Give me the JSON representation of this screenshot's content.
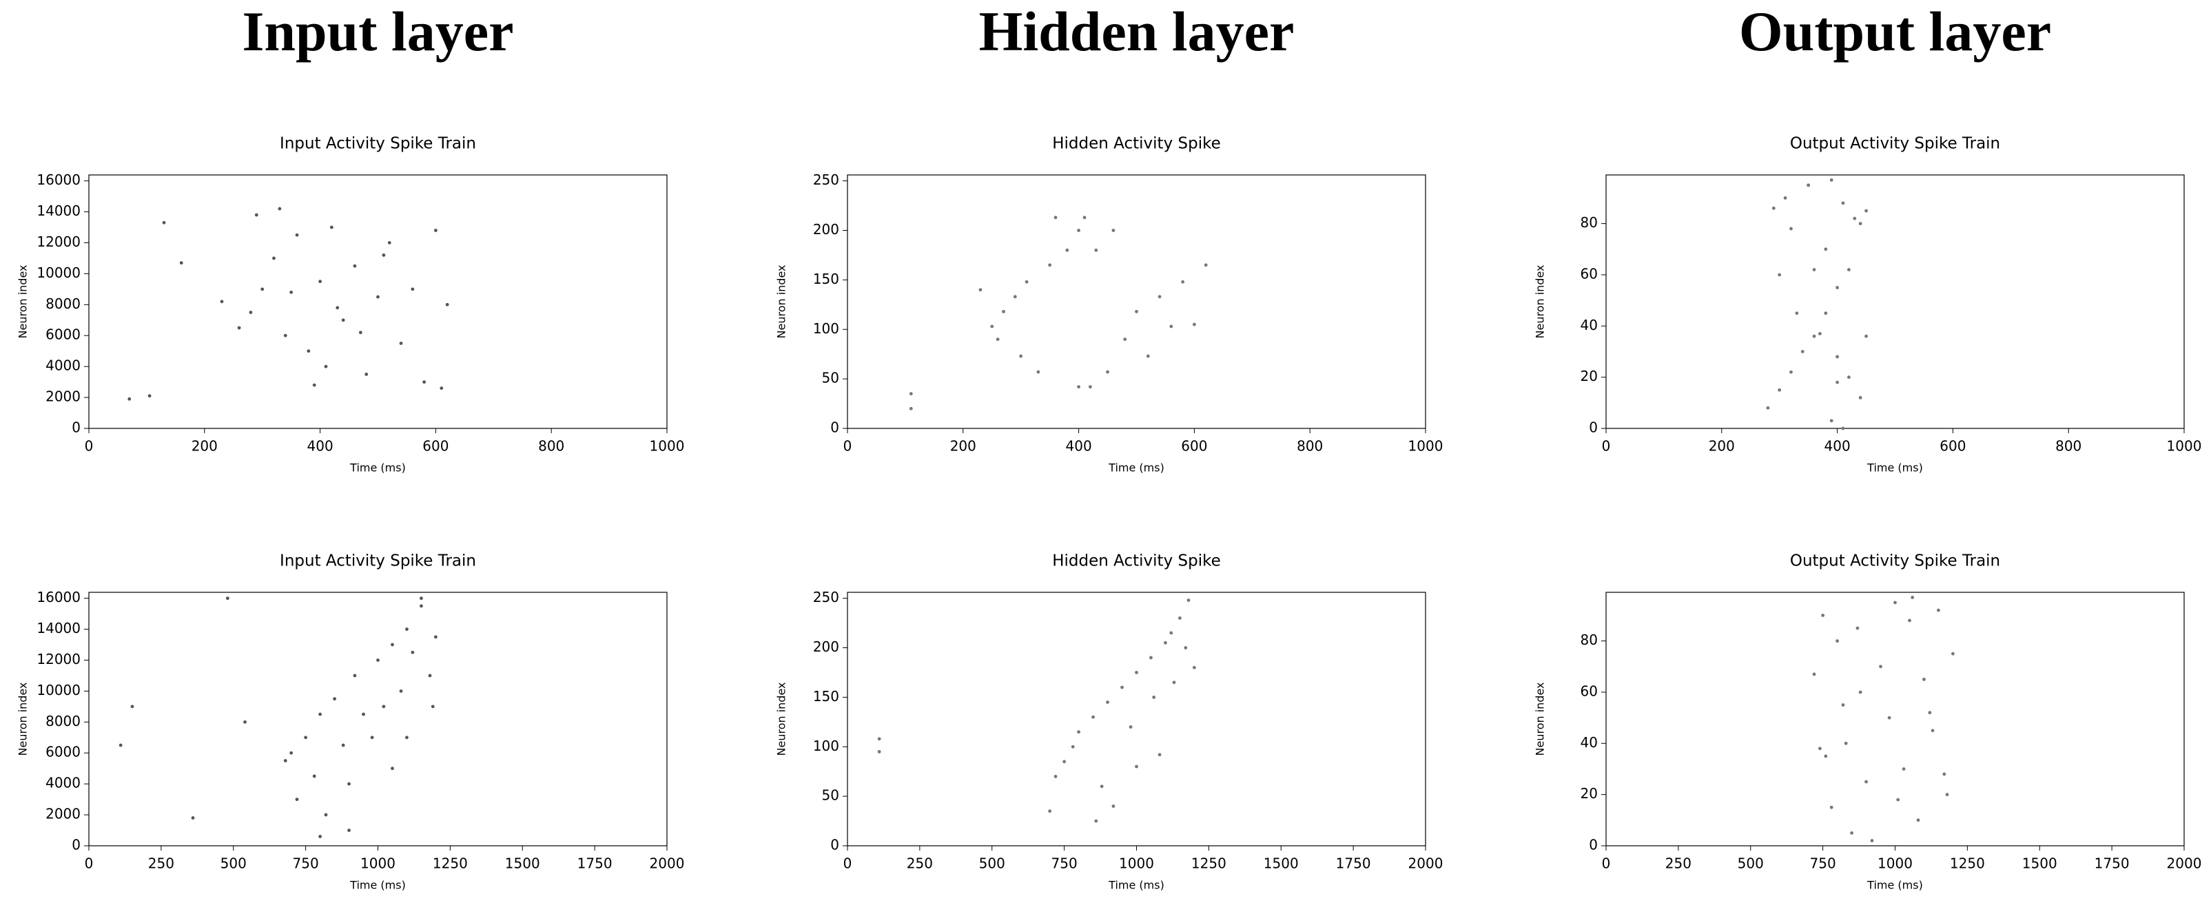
{
  "headers": [
    "Input layer",
    "Hidden layer",
    "Output layer"
  ],
  "chart_data": [
    {
      "type": "scatter",
      "title": "Input Activity Spike Train",
      "x_label": "Time (ms)",
      "y_label": "Neuron index",
      "color": "#555555",
      "xlim": [
        0,
        1000
      ],
      "ylim": [
        0,
        16384
      ],
      "xticks": [
        0,
        200,
        400,
        600,
        800,
        1000
      ],
      "yticks": [
        0,
        2000,
        4000,
        6000,
        8000,
        10000,
        12000,
        14000,
        16000
      ],
      "x": [
        70,
        105,
        130,
        160,
        230,
        260,
        280,
        300,
        320,
        340,
        360,
        380,
        400,
        410,
        420,
        440,
        460,
        480,
        500,
        520,
        540,
        560,
        580,
        600,
        610,
        620,
        290,
        350,
        430,
        470,
        510,
        390,
        330
      ],
      "y": [
        1900,
        2100,
        13300,
        10700,
        8200,
        6500,
        7500,
        9000,
        11000,
        6000,
        12500,
        5000,
        9500,
        4000,
        13000,
        7000,
        10500,
        3500,
        8500,
        12000,
        5500,
        9000,
        3000,
        12800,
        2600,
        8000,
        13800,
        8800,
        7800,
        6200,
        11200,
        2800,
        14200
      ]
    },
    {
      "type": "scatter",
      "title": "Hidden Activity Spike",
      "x_label": "Time (ms)",
      "y_label": "Neuron index",
      "color": "#777777",
      "xlim": [
        0,
        1000
      ],
      "ylim": [
        0,
        256
      ],
      "xticks": [
        0,
        200,
        400,
        600,
        800,
        1000
      ],
      "yticks": [
        0,
        50,
        100,
        150,
        200,
        250
      ],
      "x": [
        110,
        110,
        400,
        420,
        330,
        450,
        300,
        520,
        260,
        480,
        250,
        560,
        270,
        500,
        290,
        540,
        310,
        580,
        350,
        620,
        380,
        430,
        400,
        460,
        360,
        410,
        230,
        600
      ],
      "y": [
        20,
        35,
        42,
        42,
        57,
        57,
        73,
        73,
        90,
        90,
        103,
        103,
        118,
        118,
        133,
        133,
        148,
        148,
        165,
        165,
        180,
        180,
        200,
        200,
        213,
        213,
        140,
        105
      ]
    },
    {
      "type": "scatter",
      "title": "Output Activity Spike Train",
      "x_label": "Time (ms)",
      "y_label": "Neuron index",
      "color": "#777777",
      "xlim": [
        0,
        1000
      ],
      "ylim": [
        0,
        99
      ],
      "xticks": [
        0,
        200,
        400,
        600,
        800,
        1000
      ],
      "yticks": [
        0,
        20,
        40,
        60,
        80
      ],
      "x": [
        280,
        300,
        320,
        340,
        360,
        380,
        400,
        420,
        440,
        450,
        310,
        350,
        390,
        410,
        430,
        300,
        330,
        370,
        400,
        420,
        440,
        290,
        320,
        360,
        390,
        410,
        450,
        400,
        380,
        350
      ],
      "y": [
        8,
        15,
        22,
        30,
        36,
        45,
        55,
        62,
        80,
        85,
        90,
        95,
        97,
        88,
        82,
        60,
        45,
        37,
        28,
        20,
        12,
        86,
        78,
        62,
        3,
        0,
        36,
        18,
        70,
        95
      ]
    },
    {
      "type": "scatter",
      "title": "Input Activity Spike Train",
      "x_label": "Time (ms)",
      "y_label": "Neuron index",
      "color": "#555555",
      "xlim": [
        0,
        2000
      ],
      "ylim": [
        0,
        16384
      ],
      "xticks": [
        0,
        250,
        500,
        750,
        1000,
        1250,
        1500,
        1750,
        2000
      ],
      "yticks": [
        0,
        2000,
        4000,
        6000,
        8000,
        10000,
        12000,
        14000,
        16000
      ],
      "x": [
        110,
        150,
        360,
        480,
        540,
        680,
        700,
        720,
        750,
        780,
        800,
        820,
        850,
        880,
        900,
        920,
        950,
        980,
        1000,
        1020,
        1050,
        1080,
        1100,
        1120,
        1150,
        1180,
        1190,
        1200,
        1150,
        1100,
        900,
        800,
        1050
      ],
      "y": [
        6500,
        9000,
        1800,
        16000,
        8000,
        5500,
        6000,
        3000,
        7000,
        4500,
        8500,
        2000,
        9500,
        6500,
        4000,
        11000,
        8500,
        7000,
        12000,
        9000,
        13000,
        10000,
        14000,
        12500,
        15500,
        11000,
        9000,
        13500,
        16000,
        7000,
        1000,
        600,
        5000
      ]
    },
    {
      "type": "scatter",
      "title": "Hidden Activity Spike",
      "x_label": "Time (ms)",
      "y_label": "Neuron index",
      "color": "#777777",
      "xlim": [
        0,
        2000
      ],
      "ylim": [
        0,
        256
      ],
      "xticks": [
        0,
        250,
        500,
        750,
        1000,
        1250,
        1500,
        1750,
        2000
      ],
      "yticks": [
        0,
        50,
        100,
        150,
        200,
        250
      ],
      "x": [
        110,
        110,
        700,
        720,
        750,
        780,
        800,
        850,
        880,
        900,
        950,
        1000,
        1050,
        1100,
        1150,
        1180,
        1200,
        1120,
        1060,
        980,
        920,
        860,
        1130,
        1170,
        1080,
        1000
      ],
      "y": [
        108,
        95,
        35,
        70,
        85,
        100,
        115,
        130,
        60,
        145,
        160,
        175,
        190,
        205,
        230,
        248,
        180,
        215,
        150,
        120,
        40,
        25,
        165,
        200,
        92,
        80
      ]
    },
    {
      "type": "scatter",
      "title": "Output Activity Spike Train",
      "x_label": "Time (ms)",
      "y_label": "Neuron index",
      "color": "#777777",
      "xlim": [
        0,
        2000
      ],
      "ylim": [
        0,
        99
      ],
      "xticks": [
        0,
        250,
        500,
        750,
        1000,
        1250,
        1500,
        1750,
        2000
      ],
      "yticks": [
        0,
        20,
        40,
        60,
        80
      ],
      "x": [
        720,
        750,
        780,
        800,
        830,
        850,
        880,
        900,
        950,
        980,
        1000,
        1030,
        1050,
        1080,
        1100,
        1130,
        1150,
        1180,
        1200,
        760,
        820,
        870,
        920,
        1060,
        1120,
        1170,
        740,
        1010
      ],
      "y": [
        67,
        90,
        15,
        80,
        40,
        5,
        60,
        25,
        70,
        50,
        95,
        30,
        88,
        10,
        65,
        45,
        92,
        20,
        75,
        35,
        55,
        85,
        2,
        97,
        52,
        28,
        38,
        18
      ]
    }
  ]
}
